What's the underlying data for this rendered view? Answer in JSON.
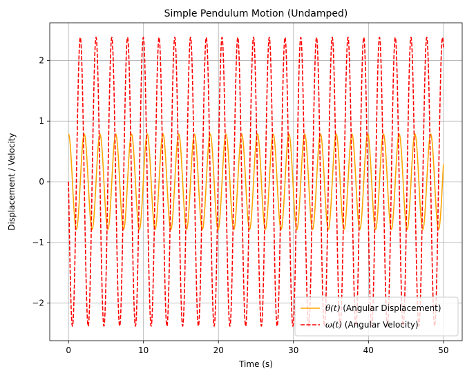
{
  "chart_data": {
    "type": "line",
    "title": "Simple Pendulum Motion (Undamped)",
    "xlabel": "Time (s)",
    "ylabel": "Displacement / Velocity",
    "xlim": [
      -2.5,
      52.5
    ],
    "ylim": [
      -2.62,
      2.62
    ],
    "xticks": [
      0,
      10,
      20,
      30,
      40,
      50
    ],
    "yticks": [
      -2,
      -1,
      0,
      1,
      2
    ],
    "ytick_labels": [
      "−2",
      "−1",
      "0",
      "1",
      "2"
    ],
    "grid": true,
    "legend_position": "lower-right",
    "period": 2.1,
    "series": [
      {
        "name": "θ(t) (Angular Displacement)",
        "legend_math": "θ(t)",
        "legend_rest": " (Angular Displacement)",
        "amplitude": 0.785,
        "wave": "cos",
        "color": "#ffa500",
        "style": "solid",
        "t_range": [
          0,
          50
        ]
      },
      {
        "name": "ω(t) (Angular Velocity)",
        "legend_math": "ω(t)",
        "legend_rest": " (Angular Velocity)",
        "amplitude": 2.38,
        "wave": "-sin",
        "color": "#ff0000",
        "style": "dashed",
        "t_range": [
          0,
          50
        ]
      }
    ]
  }
}
